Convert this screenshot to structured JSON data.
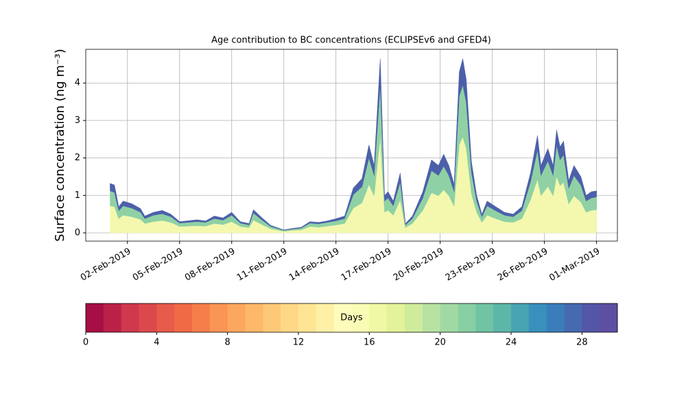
{
  "chart_data": [
    {
      "type": "stacked-area",
      "title": "Age contribution to BC concentrations (ECLIPSEv6 and GFED4)",
      "y_label": "Surface concentration (ng m⁻³)",
      "x": [
        1,
        1.25,
        1.5,
        1.75,
        2.25,
        2.75,
        3,
        3.5,
        4,
        4.5,
        5,
        6,
        6.5,
        7,
        7.5,
        8,
        8.5,
        9,
        9.25,
        9.75,
        10.25,
        11,
        11.5,
        12,
        12.5,
        13,
        13.5,
        14,
        14.5,
        15,
        15.5,
        15.9,
        16.2,
        16.55,
        16.8,
        17,
        17.3,
        17.7,
        18,
        18.4,
        19,
        19.5,
        19.9,
        20.2,
        20.5,
        20.8,
        21.1,
        21.3,
        21.5,
        21.8,
        22.1,
        22.4,
        22.7,
        23.2,
        23.7,
        24.2,
        24.7,
        25.2,
        25.6,
        25.8,
        26.2,
        26.5,
        26.7,
        26.9,
        27.1,
        27.4,
        27.7,
        28.1,
        28.4,
        28.7,
        29
      ],
      "series": [
        {
          "color": "#f3f8ae",
          "values": [
            0.72,
            0.7,
            0.38,
            0.47,
            0.43,
            0.36,
            0.25,
            0.3,
            0.33,
            0.28,
            0.17,
            0.19,
            0.18,
            0.25,
            0.22,
            0.3,
            0.17,
            0.14,
            0.34,
            0.22,
            0.11,
            0.04,
            0.07,
            0.08,
            0.17,
            0.15,
            0.18,
            0.21,
            0.25,
            0.66,
            0.8,
            1.29,
            0.99,
            2.56,
            0.55,
            0.6,
            0.47,
            0.88,
            0.14,
            0.25,
            0.6,
            1.07,
            0.99,
            1.15,
            0.99,
            0.71,
            2.36,
            2.56,
            2.25,
            1.04,
            0.55,
            0.28,
            0.47,
            0.38,
            0.3,
            0.28,
            0.38,
            0.88,
            1.43,
            0.99,
            1.24,
            0.99,
            1.51,
            1.26,
            1.35,
            0.77,
            0.99,
            0.82,
            0.55,
            0.6,
            0.62
          ]
        },
        {
          "color": "#8fd1a4",
          "values": [
            0.4,
            0.38,
            0.21,
            0.25,
            0.23,
            0.19,
            0.13,
            0.17,
            0.18,
            0.15,
            0.09,
            0.11,
            0.1,
            0.13,
            0.12,
            0.17,
            0.09,
            0.07,
            0.19,
            0.12,
            0.06,
            0.03,
            0.03,
            0.05,
            0.09,
            0.09,
            0.1,
            0.11,
            0.13,
            0.36,
            0.43,
            0.71,
            0.54,
            1.39,
            0.3,
            0.33,
            0.25,
            0.48,
            0.07,
            0.13,
            0.33,
            0.59,
            0.54,
            0.63,
            0.54,
            0.39,
            1.29,
            1.39,
            1.23,
            0.57,
            0.3,
            0.15,
            0.25,
            0.21,
            0.17,
            0.15,
            0.21,
            0.48,
            0.78,
            0.54,
            0.68,
            0.54,
            0.83,
            0.69,
            0.73,
            0.42,
            0.54,
            0.45,
            0.3,
            0.33,
            0.34
          ]
        },
        {
          "color": "#4c60aa",
          "values": [
            0.2,
            0.2,
            0.11,
            0.13,
            0.12,
            0.1,
            0.07,
            0.08,
            0.09,
            0.07,
            0.04,
            0.05,
            0.04,
            0.07,
            0.06,
            0.08,
            0.04,
            0.04,
            0.09,
            0.06,
            0.03,
            0.01,
            0.02,
            0.02,
            0.04,
            0.04,
            0.04,
            0.06,
            0.07,
            0.18,
            0.22,
            0.35,
            0.27,
            0.7,
            0.15,
            0.17,
            0.13,
            0.24,
            0.04,
            0.07,
            0.17,
            0.29,
            0.27,
            0.32,
            0.27,
            0.2,
            0.65,
            0.7,
            0.62,
            0.29,
            0.15,
            0.07,
            0.13,
            0.11,
            0.08,
            0.07,
            0.11,
            0.24,
            0.39,
            0.27,
            0.33,
            0.27,
            0.41,
            0.35,
            0.37,
            0.21,
            0.27,
            0.23,
            0.15,
            0.17,
            0.16
          ]
        }
      ],
      "xlim": [
        -0.4,
        30.2
      ],
      "xticks": [
        {
          "value": 2,
          "label": "02-Feb-2019"
        },
        {
          "value": 5,
          "label": "05-Feb-2019"
        },
        {
          "value": 8,
          "label": "08-Feb-2019"
        },
        {
          "value": 11,
          "label": "11-Feb-2019"
        },
        {
          "value": 14,
          "label": "14-Feb-2019"
        },
        {
          "value": 17,
          "label": "17-Feb-2019"
        },
        {
          "value": 20,
          "label": "20-Feb-2019"
        },
        {
          "value": 23,
          "label": "23-Feb-2019"
        },
        {
          "value": 26,
          "label": "26-Feb-2019"
        },
        {
          "value": 29,
          "label": "01-Mar-2019"
        }
      ],
      "ylim": [
        -0.22,
        4.9
      ],
      "yticks": [
        0,
        1,
        2,
        3,
        4
      ],
      "grid": true
    },
    {
      "type": "colorbar",
      "label": "Days",
      "colors": [
        "#a50f45",
        "#bb2148",
        "#cf384d",
        "#dc494c",
        "#e65b4b",
        "#f06b45",
        "#f57e4b",
        "#f99555",
        "#fca75f",
        "#fdb869",
        "#fdc978",
        "#fed886",
        "#fee593",
        "#fef0a7",
        "#fffcbb",
        "#f8fcb4",
        "#eef8a5",
        "#e2f399",
        "#cfec9d",
        "#b8e2a1",
        "#a1d9a4",
        "#88cfa4",
        "#70c4a4",
        "#5db7a9",
        "#48a4b2",
        "#3890bc",
        "#3b7dba",
        "#4769b0",
        "#5456a7",
        "#5e4fa2"
      ],
      "xlim": [
        0,
        30
      ],
      "xticks": [
        0,
        4,
        8,
        12,
        16,
        20,
        24,
        28
      ]
    }
  ]
}
